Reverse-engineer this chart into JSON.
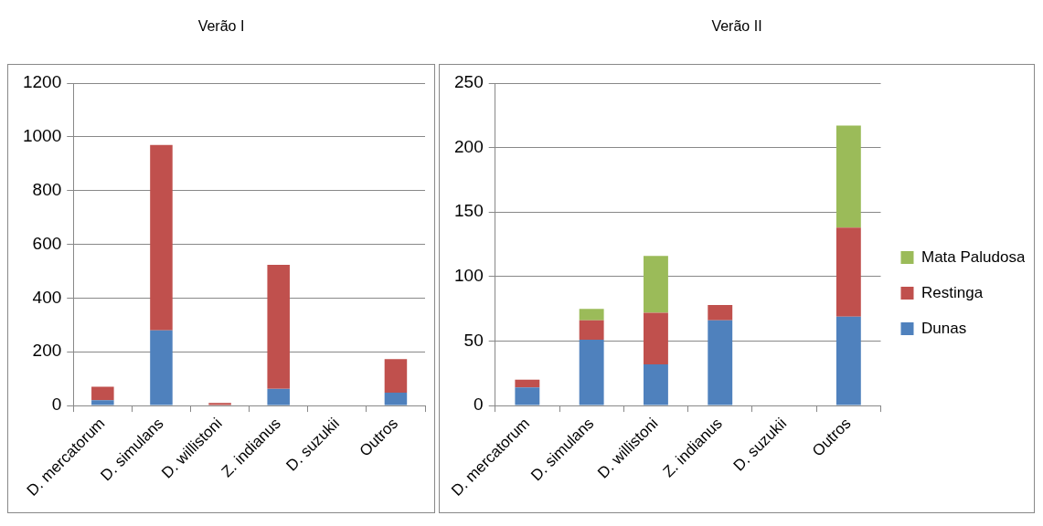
{
  "chart_data": [
    {
      "type": "bar",
      "title": "Verão I",
      "categories": [
        "D. mercatorum",
        "D. simulans",
        "D. willistoni",
        "Z. indianus",
        "D. suzukii",
        "Outros"
      ],
      "stacked": true,
      "ylim": [
        0,
        1200
      ],
      "yticks": [
        0,
        200,
        400,
        600,
        800,
        1000,
        1200
      ],
      "grid": "y",
      "legend": false,
      "series": [
        {
          "color": "#4f81bd",
          "values": [
            20,
            280,
            0,
            62,
            0,
            48
          ]
        },
        {
          "color": "#c0504d",
          "values": [
            50,
            690,
            10,
            462,
            0,
            125
          ]
        }
      ]
    },
    {
      "type": "bar",
      "title": "Verão II",
      "categories": [
        "D. mercatorum",
        "D. simulans",
        "D. willistoni",
        "Z. indianus",
        "D. suzukii",
        "Outros"
      ],
      "stacked": true,
      "ylim": [
        0,
        250
      ],
      "yticks": [
        0,
        50,
        100,
        150,
        200,
        250
      ],
      "grid": "y",
      "legend": "right",
      "series": [
        {
          "name": "Dunas",
          "color": "#4f81bd",
          "values": [
            14,
            51,
            32,
            66,
            0,
            69
          ]
        },
        {
          "name": "Restinga",
          "color": "#c0504d",
          "values": [
            6,
            15,
            40,
            12,
            0,
            69
          ]
        },
        {
          "name": "Mata Paludosa",
          "color": "#9bbb59",
          "values": [
            0,
            9,
            44,
            0,
            0,
            79
          ]
        }
      ]
    }
  ]
}
